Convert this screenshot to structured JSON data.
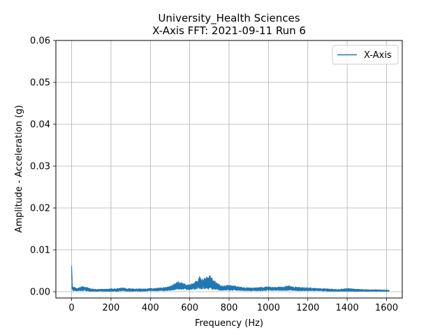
{
  "colors": {
    "series": "#1f77b4",
    "grid": "#b0b0b0",
    "axes": "#000000",
    "legend_border": "#cccccc"
  },
  "chart_data": {
    "type": "line",
    "title": "University_Health Sciences",
    "subtitle": "X-Axis FFT: 2021-09-11 Run 6",
    "xlabel": "Frequency (Hz)",
    "ylabel": "Amplitude - Acceleration (g)",
    "xlim": [
      -80,
      1680
    ],
    "ylim": [
      -0.0015,
      0.06
    ],
    "xticks": [
      0,
      200,
      400,
      600,
      800,
      1000,
      1200,
      1400,
      1600
    ],
    "yticks": [
      0.0,
      0.01,
      0.02,
      0.03,
      0.04,
      0.05,
      0.06
    ],
    "xtick_labels": [
      "0",
      "200",
      "400",
      "600",
      "800",
      "1000",
      "1200",
      "1400",
      "1600"
    ],
    "ytick_labels": [
      "0.00",
      "0.01",
      "0.02",
      "0.03",
      "0.04",
      "0.05",
      "0.06"
    ],
    "grid": true,
    "legend_position": "top-right",
    "series": [
      {
        "name": "X-Axis",
        "color": "#1f77b4",
        "x_range": [
          0,
          1613
        ],
        "envelope": {
          "x": [
            0,
            2,
            4,
            8,
            15,
            25,
            40,
            55,
            70,
            90,
            120,
            160,
            200,
            240,
            260,
            280,
            320,
            360,
            400,
            440,
            480,
            500,
            520,
            540,
            560,
            580,
            600,
            620,
            640,
            650,
            660,
            680,
            700,
            720,
            740,
            760,
            800,
            840,
            880,
            920,
            960,
            1000,
            1040,
            1080,
            1100,
            1120,
            1150,
            1200,
            1250,
            1300,
            1350,
            1380,
            1400,
            1450,
            1500,
            1550,
            1600,
            1613
          ],
          "max": [
            0.0113,
            0.0045,
            0.0015,
            0.001,
            0.0011,
            0.0008,
            0.001,
            0.0013,
            0.0012,
            0.0008,
            0.0006,
            0.0006,
            0.0007,
            0.0008,
            0.001,
            0.0008,
            0.0007,
            0.0007,
            0.0008,
            0.0009,
            0.0011,
            0.0013,
            0.0018,
            0.0025,
            0.0022,
            0.0018,
            0.0016,
            0.0024,
            0.0026,
            0.0038,
            0.003,
            0.0034,
            0.004,
            0.003,
            0.002,
            0.0015,
            0.0016,
            0.0013,
            0.001,
            0.0009,
            0.0011,
            0.0012,
            0.0011,
            0.0012,
            0.0015,
            0.0012,
            0.0011,
            0.001,
            0.0008,
            0.0007,
            0.0006,
            0.0007,
            0.0008,
            0.0006,
            0.0005,
            0.0005,
            0.0004,
            0.0004
          ],
          "min": [
            0.0,
            0.0003,
            0.0003,
            0.0002,
            0.0002,
            0.0002,
            0.0002,
            0.0002,
            0.0002,
            0.0001,
            0.0001,
            0.0001,
            0.0001,
            0.0001,
            0.0002,
            0.0001,
            0.0001,
            0.0001,
            0.0002,
            0.0002,
            0.0002,
            0.0003,
            0.0004,
            0.0005,
            0.0005,
            0.0005,
            0.0004,
            0.0005,
            0.0006,
            0.0006,
            0.0006,
            0.0006,
            0.0006,
            0.0005,
            0.0004,
            0.0003,
            0.0003,
            0.0003,
            0.0002,
            0.0002,
            0.0002,
            0.0003,
            0.0003,
            0.0003,
            0.0003,
            0.0003,
            0.0002,
            0.0002,
            0.0002,
            0.0001,
            0.0001,
            0.0001,
            0.0001,
            0.0001,
            0.0001,
            0.0001,
            0.0001,
            0.0001
          ]
        }
      }
    ]
  }
}
